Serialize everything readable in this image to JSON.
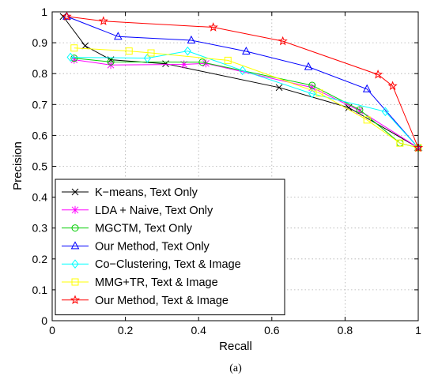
{
  "chart_data": {
    "type": "line",
    "xlabel": "Recall",
    "ylabel": "Precision",
    "caption": "(a)",
    "xlim": [
      0,
      1
    ],
    "ylim": [
      0,
      1
    ],
    "xticks": [
      "0",
      "0.2",
      "0.4",
      "0.6",
      "0.8",
      "1"
    ],
    "yticks": [
      "0",
      "0.1",
      "0.2",
      "0.3",
      "0.4",
      "0.5",
      "0.6",
      "0.7",
      "0.8",
      "0.9",
      "1"
    ],
    "grid": true,
    "legend_position": "bottom-left",
    "series": [
      {
        "name": "K−means, Text Only",
        "color": "#000000",
        "marker": "x",
        "points": [
          [
            0.03,
            0.985
          ],
          [
            0.09,
            0.89
          ],
          [
            0.16,
            0.845
          ],
          [
            0.31,
            0.832
          ],
          [
            0.62,
            0.755
          ],
          [
            0.81,
            0.69
          ],
          [
            1.0,
            0.56
          ]
        ]
      },
      {
        "name": "LDA + Naive, Text Only",
        "color": "#ff00ff",
        "marker": "asterisk",
        "points": [
          [
            0.06,
            0.845
          ],
          [
            0.16,
            0.828
          ],
          [
            0.36,
            0.83
          ],
          [
            0.42,
            0.833
          ],
          [
            0.71,
            0.755
          ],
          [
            0.84,
            0.68
          ],
          [
            1.0,
            0.56
          ]
        ]
      },
      {
        "name": "MGCTM, Text Only",
        "color": "#00cc00",
        "marker": "circle",
        "points": [
          [
            0.06,
            0.85
          ],
          [
            0.16,
            0.838
          ],
          [
            0.41,
            0.837
          ],
          [
            0.71,
            0.762
          ],
          [
            0.84,
            0.683
          ],
          [
            0.95,
            0.575
          ],
          [
            1.0,
            0.56
          ]
        ]
      },
      {
        "name": "Our Method, Text Only",
        "color": "#0000ff",
        "marker": "triangle",
        "points": [
          [
            0.04,
            0.985
          ],
          [
            0.18,
            0.92
          ],
          [
            0.38,
            0.908
          ],
          [
            0.53,
            0.872
          ],
          [
            0.7,
            0.822
          ],
          [
            0.86,
            0.75
          ],
          [
            1.0,
            0.56
          ]
        ]
      },
      {
        "name": "Co−Clustering, Text & Image",
        "color": "#00ffff",
        "marker": "diamond",
        "points": [
          [
            0.05,
            0.853
          ],
          [
            0.26,
            0.85
          ],
          [
            0.37,
            0.873
          ],
          [
            0.52,
            0.81
          ],
          [
            0.71,
            0.735
          ],
          [
            0.91,
            0.677
          ],
          [
            1.0,
            0.56
          ]
        ]
      },
      {
        "name": "MMG+TR, Text & Image",
        "color": "#ffff00",
        "marker": "square",
        "points": [
          [
            0.06,
            0.883
          ],
          [
            0.21,
            0.873
          ],
          [
            0.27,
            0.867
          ],
          [
            0.48,
            0.843
          ],
          [
            0.73,
            0.737
          ],
          [
            0.86,
            0.65
          ],
          [
            0.95,
            0.575
          ],
          [
            1.0,
            0.56
          ]
        ]
      },
      {
        "name": "Our Method, Text & Image",
        "color": "#ff0000",
        "marker": "star",
        "points": [
          [
            0.04,
            0.985
          ],
          [
            0.14,
            0.97
          ],
          [
            0.44,
            0.95
          ],
          [
            0.63,
            0.905
          ],
          [
            0.89,
            0.797
          ],
          [
            0.93,
            0.76
          ],
          [
            1.0,
            0.56
          ]
        ]
      }
    ]
  }
}
